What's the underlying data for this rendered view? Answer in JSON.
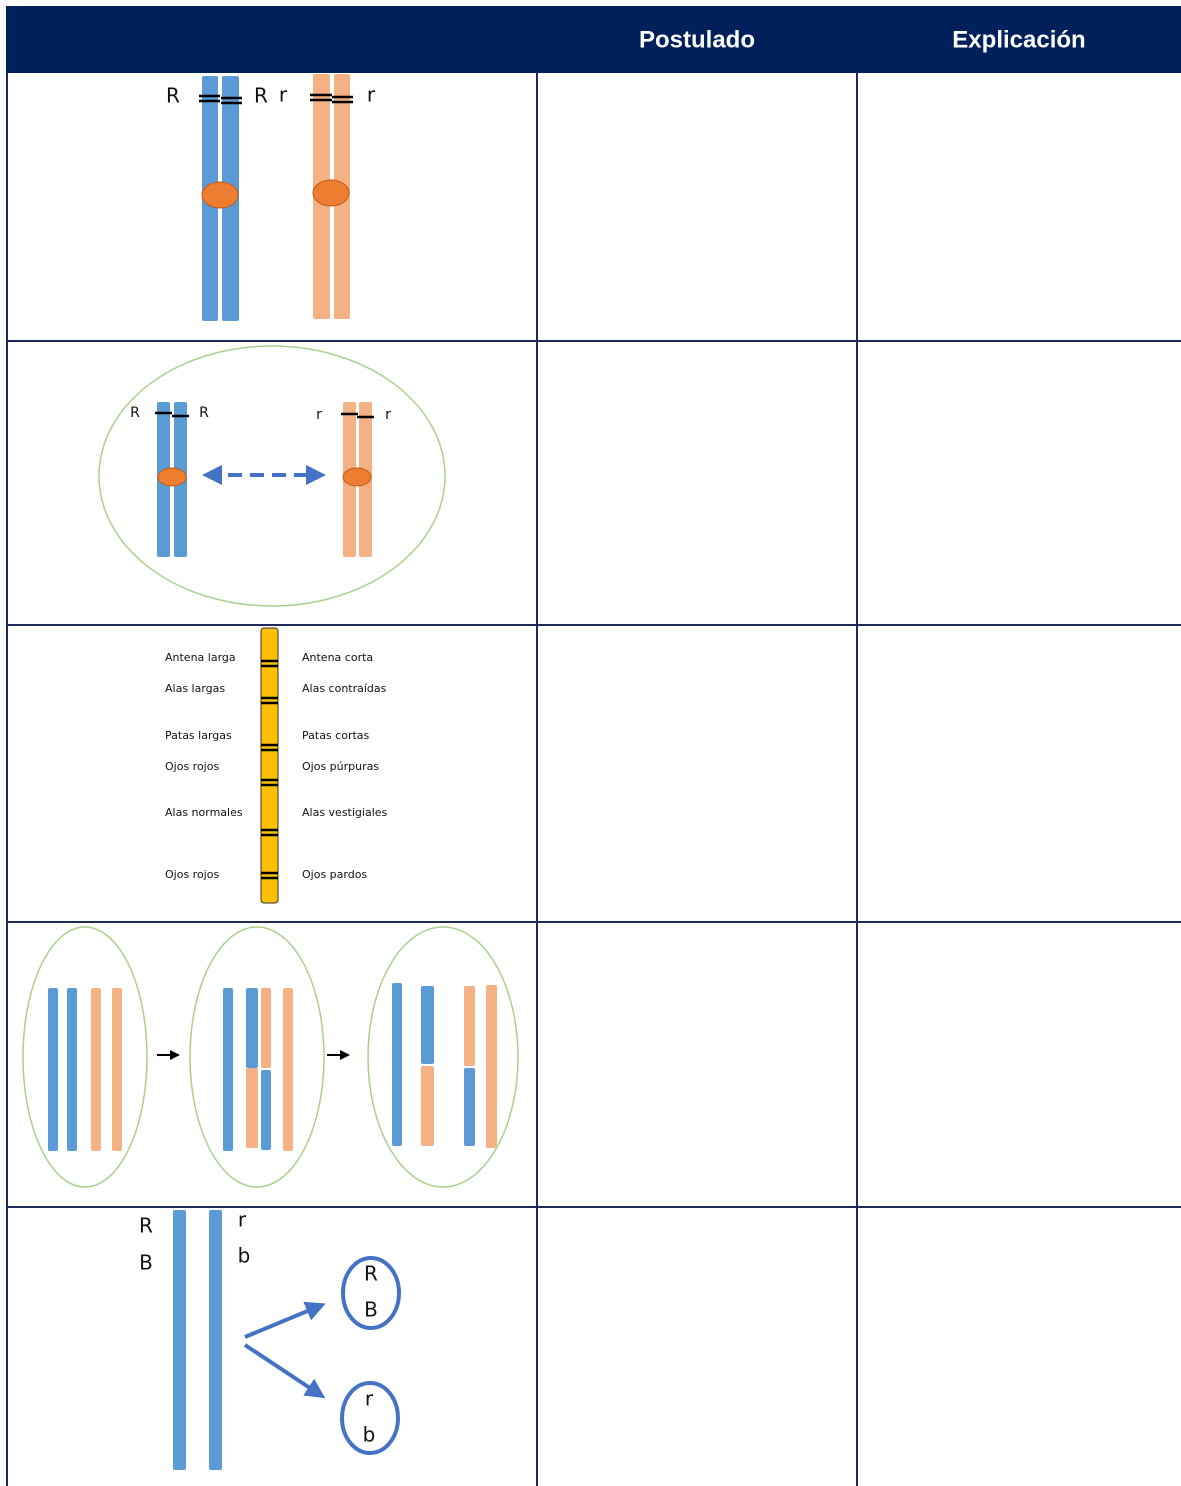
{
  "table": {
    "headers": [
      "Postulado",
      "Explicación"
    ],
    "rows": [
      {
        "labels": [
          "R",
          "R",
          "r",
          "r"
        ]
      },
      {
        "labels": [
          "R",
          "R",
          "r",
          "r"
        ]
      },
      {
        "left_traits": [
          "Antena larga",
          "Alas largas",
          "Patas largas",
          "Ojos rojos",
          "Alas normales",
          "Ojos rojos"
        ],
        "right_traits": [
          "Antena corta",
          "Alas contraídas",
          "Patas cortas",
          "Ojos púrpuras",
          "Alas vestigiales",
          "Ojos pardos"
        ]
      },
      {},
      {
        "left_alleles": [
          "R",
          "B"
        ],
        "right_alleles": [
          "r",
          "b"
        ],
        "gametes": [
          [
            "R",
            "B"
          ],
          [
            "r",
            "b"
          ]
        ]
      }
    ]
  }
}
